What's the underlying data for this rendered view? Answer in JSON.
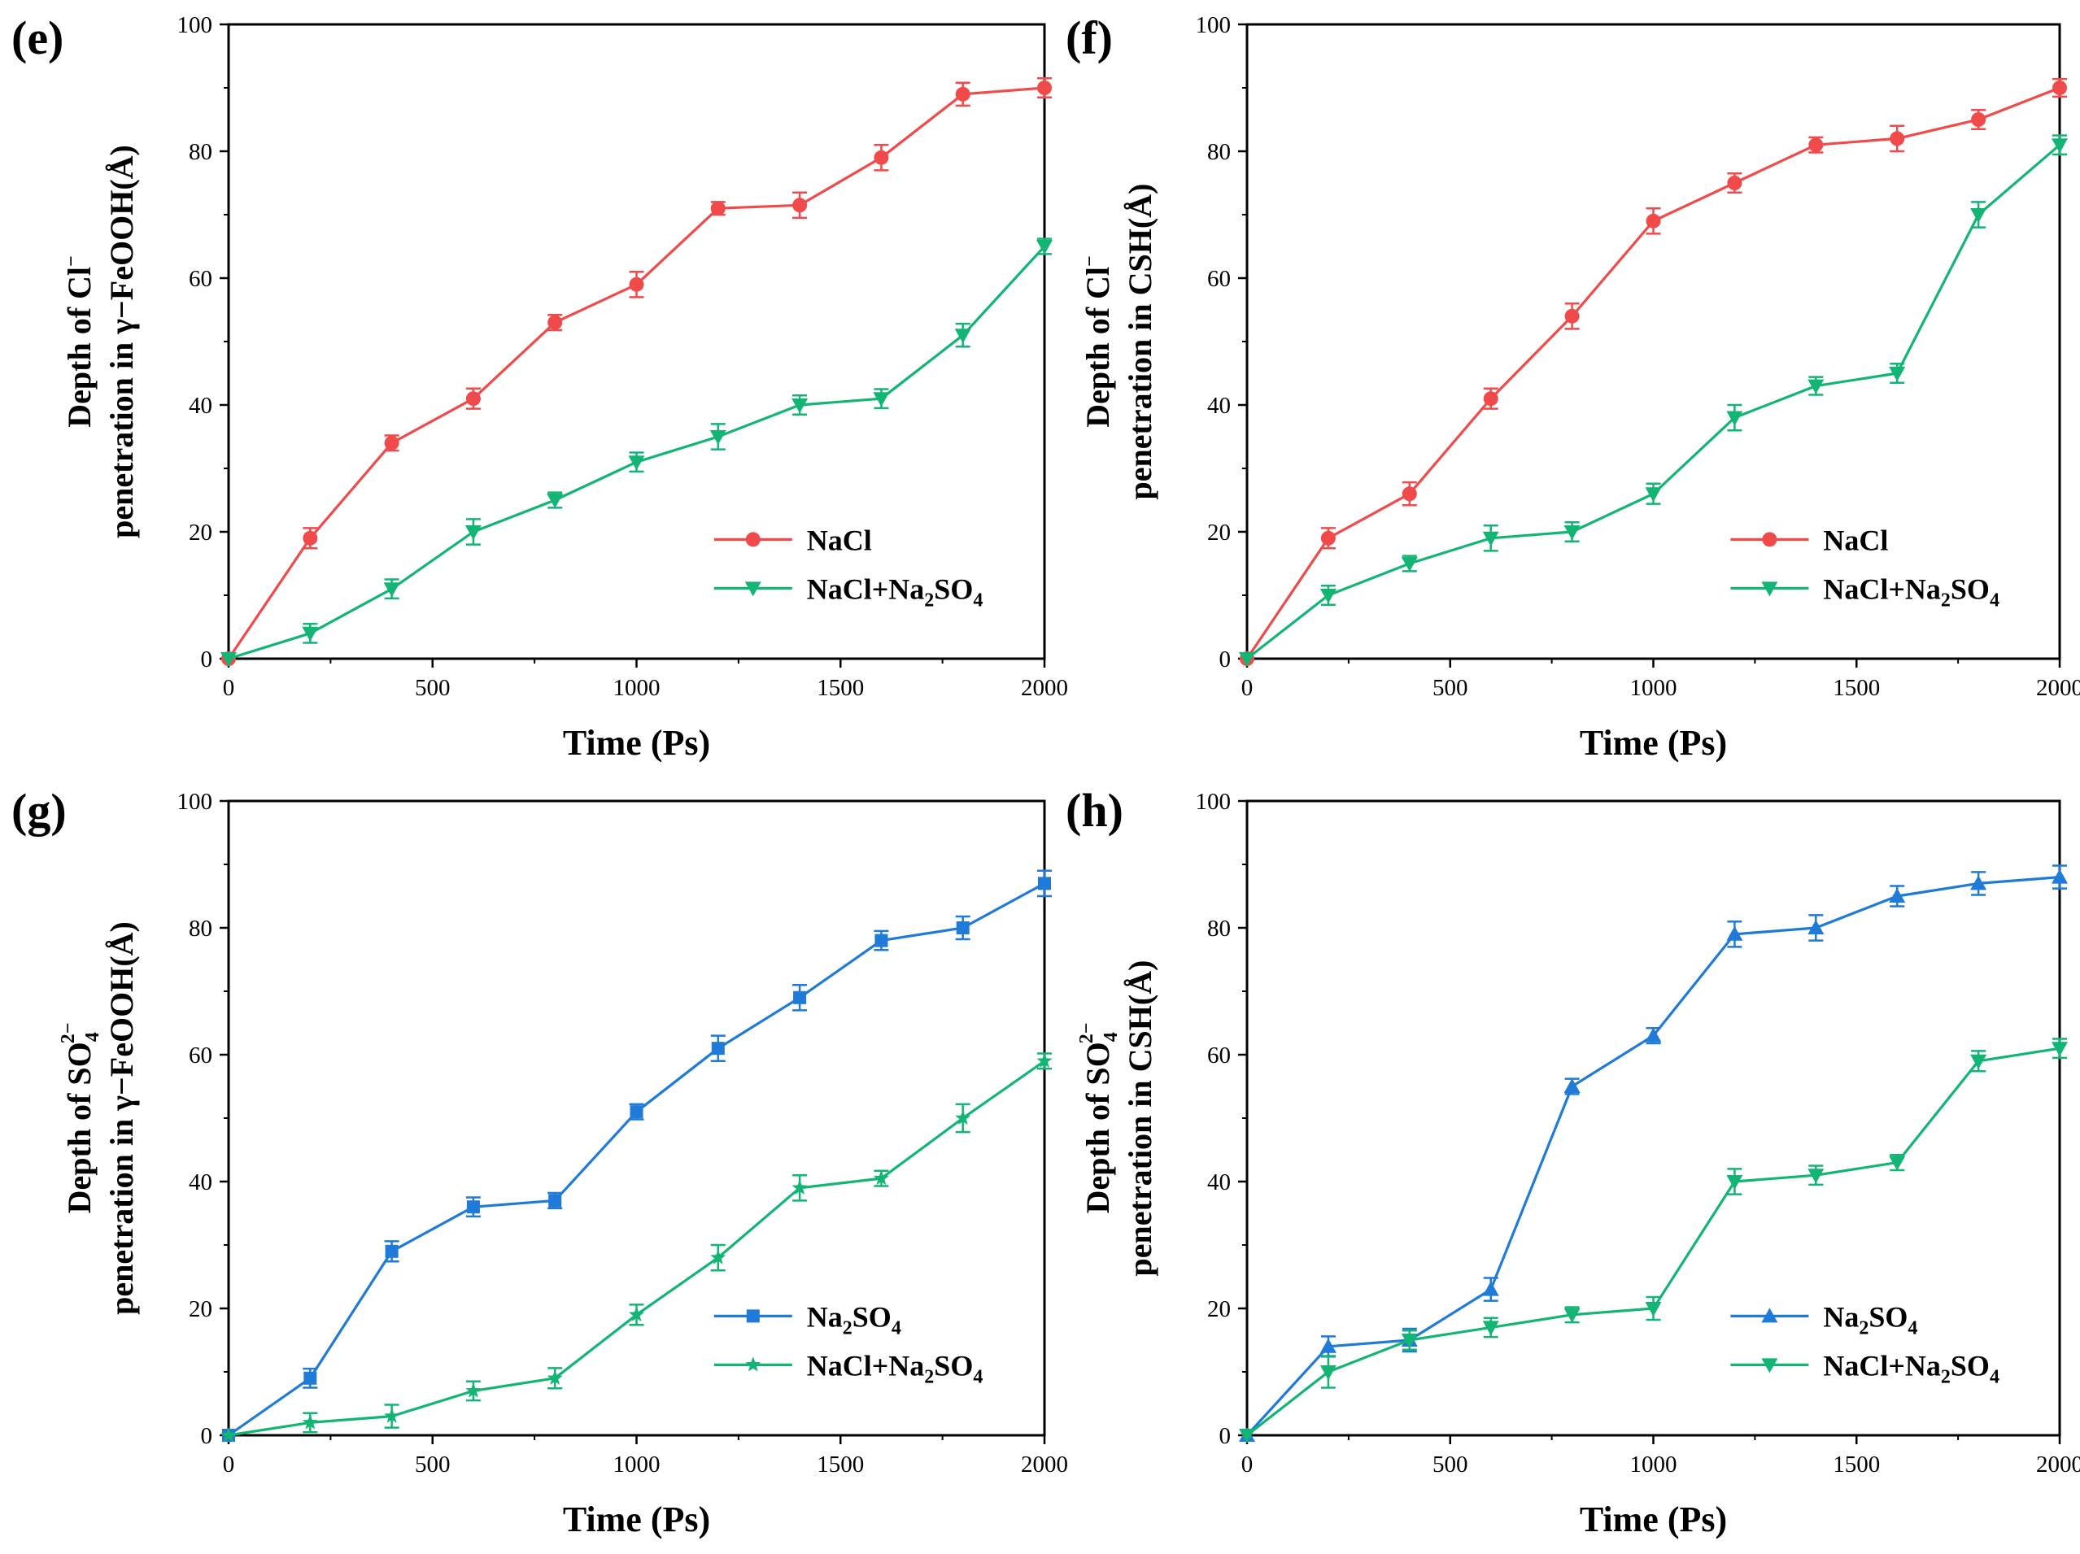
{
  "colors": {
    "red": "#f04a4a",
    "green": "#12b574",
    "blue": "#1f7ad8"
  },
  "chart_data": [
    {
      "panel": "(e)",
      "type": "line",
      "xlabel": "Time (Ps)",
      "ylabel_line1": [
        "Depth of Cl",
        "−"
      ],
      "ylabel_line2": [
        "penetration in γ−FeOOH(Å)"
      ],
      "xlim": [
        0,
        2000
      ],
      "ylim": [
        0,
        100
      ],
      "xticks": [
        0,
        500,
        1000,
        1500,
        2000
      ],
      "yticks": [
        0,
        20,
        40,
        60,
        80,
        100
      ],
      "legend_position": "bottom-right",
      "series": [
        {
          "name": [
            "NaCl"
          ],
          "color": "red",
          "marker": "circle",
          "x": [
            0,
            200,
            400,
            600,
            800,
            1000,
            1200,
            1400,
            1600,
            1800,
            2000
          ],
          "y": [
            0,
            19,
            34,
            41,
            53,
            59,
            71,
            71.5,
            79,
            89,
            90
          ],
          "err": [
            0,
            1.6,
            1.2,
            1.6,
            1.2,
            2,
            1,
            2,
            2,
            1.8,
            1.5
          ]
        },
        {
          "name": [
            "NaCl+Na",
            "2",
            "SO",
            "4"
          ],
          "color": "green",
          "marker": "triangle-down",
          "x": [
            0,
            200,
            400,
            600,
            800,
            1000,
            1200,
            1400,
            1600,
            1800,
            2000
          ],
          "y": [
            0,
            4,
            11,
            20,
            25,
            31,
            35,
            40,
            41,
            51,
            65
          ],
          "err": [
            0,
            1.5,
            1.5,
            2,
            1.2,
            1.5,
            2,
            1.5,
            1.5,
            1.8,
            1.2
          ]
        }
      ]
    },
    {
      "panel": "(f)",
      "type": "line",
      "xlabel": "Time (Ps)",
      "ylabel_line1": [
        "Depth of Cl",
        "−"
      ],
      "ylabel_line2": [
        "penetration in CSH(Å)"
      ],
      "xlim": [
        0,
        2000
      ],
      "ylim": [
        0,
        100
      ],
      "xticks": [
        0,
        500,
        1000,
        1500,
        2000
      ],
      "yticks": [
        0,
        20,
        40,
        60,
        80,
        100
      ],
      "legend_position": "bottom-right",
      "series": [
        {
          "name": [
            "NaCl"
          ],
          "color": "red",
          "marker": "circle",
          "x": [
            0,
            200,
            400,
            600,
            800,
            1000,
            1200,
            1400,
            1600,
            1800,
            2000
          ],
          "y": [
            0,
            19,
            26,
            41,
            54,
            69,
            75,
            81,
            82,
            85,
            90
          ],
          "err": [
            0,
            1.6,
            1.8,
            1.6,
            2,
            2,
            1.5,
            1.2,
            2,
            1.5,
            1.4
          ]
        },
        {
          "name": [
            "NaCl+Na",
            "2",
            "SO",
            "4"
          ],
          "color": "green",
          "marker": "triangle-down",
          "x": [
            0,
            200,
            400,
            600,
            800,
            1000,
            1200,
            1400,
            1600,
            1800,
            2000
          ],
          "y": [
            0,
            10,
            15,
            19,
            20,
            26,
            38,
            43,
            45,
            70,
            81
          ],
          "err": [
            0,
            1.5,
            1.2,
            2,
            1.5,
            1.6,
            2,
            1.4,
            1.5,
            2,
            1.5
          ]
        }
      ]
    },
    {
      "panel": "(g)",
      "type": "line",
      "xlabel": "Time (Ps)",
      "ylabel_line1": [
        "Depth of SO",
        "4",
        "2−"
      ],
      "ylabel_line2": [
        "penetration in γ−FeOOH(Å)"
      ],
      "xlim": [
        0,
        2000
      ],
      "ylim": [
        0,
        100
      ],
      "xticks": [
        0,
        500,
        1000,
        1500,
        2000
      ],
      "yticks": [
        0,
        20,
        40,
        60,
        80,
        100
      ],
      "legend_position": "bottom-right",
      "series": [
        {
          "name": [
            "Na",
            "2",
            "SO",
            "4"
          ],
          "color": "blue",
          "marker": "square",
          "x": [
            0,
            200,
            400,
            600,
            800,
            1000,
            1200,
            1400,
            1600,
            1800,
            2000
          ],
          "y": [
            0,
            9,
            29,
            36,
            37,
            51,
            61,
            69,
            78,
            80,
            87
          ],
          "err": [
            0,
            1.5,
            1.6,
            1.5,
            1.2,
            1.2,
            2,
            2,
            1.5,
            1.8,
            2
          ]
        },
        {
          "name": [
            "NaCl+Na",
            "2",
            "SO",
            "4"
          ],
          "color": "green",
          "marker": "star",
          "x": [
            0,
            200,
            400,
            600,
            800,
            1000,
            1200,
            1400,
            1600,
            1800,
            2000
          ],
          "y": [
            0,
            2,
            3,
            7,
            9,
            19,
            28,
            39,
            40.5,
            50,
            59
          ],
          "err": [
            0,
            1.5,
            1.8,
            1.5,
            1.6,
            1.6,
            2,
            2,
            1.2,
            2.2,
            1.2
          ]
        }
      ]
    },
    {
      "panel": "(h)",
      "type": "line",
      "xlabel": "Time (Ps)",
      "ylabel_line1": [
        "Depth of SO",
        "4",
        "2−"
      ],
      "ylabel_line2": [
        "penetration in CSH(Å)"
      ],
      "xlim": [
        0,
        2000
      ],
      "ylim": [
        0,
        100
      ],
      "xticks": [
        0,
        500,
        1000,
        1500,
        2000
      ],
      "yticks": [
        0,
        20,
        40,
        60,
        80,
        100
      ],
      "legend_position": "bottom-right",
      "series": [
        {
          "name": [
            "Na",
            "2",
            "SO",
            "4"
          ],
          "color": "blue",
          "marker": "triangle-up",
          "x": [
            0,
            200,
            400,
            600,
            800,
            1000,
            1200,
            1400,
            1600,
            1800,
            2000
          ],
          "y": [
            0,
            14,
            15,
            23,
            55,
            63,
            79,
            80,
            85,
            87,
            88
          ],
          "err": [
            0,
            1.6,
            1.8,
            1.8,
            1.2,
            1.2,
            2,
            2,
            1.6,
            1.8,
            1.8
          ]
        },
        {
          "name": [
            "NaCl+Na",
            "2",
            "SO",
            "4"
          ],
          "color": "green",
          "marker": "triangle-down",
          "x": [
            0,
            200,
            400,
            600,
            800,
            1000,
            1200,
            1400,
            1600,
            1800,
            2000
          ],
          "y": [
            0,
            10,
            15,
            17,
            19,
            20,
            40,
            41,
            43,
            59,
            61
          ],
          "err": [
            0,
            2.5,
            1.5,
            1.5,
            1.2,
            1.8,
            2,
            1.5,
            1.2,
            1.6,
            1.5
          ]
        }
      ]
    }
  ]
}
